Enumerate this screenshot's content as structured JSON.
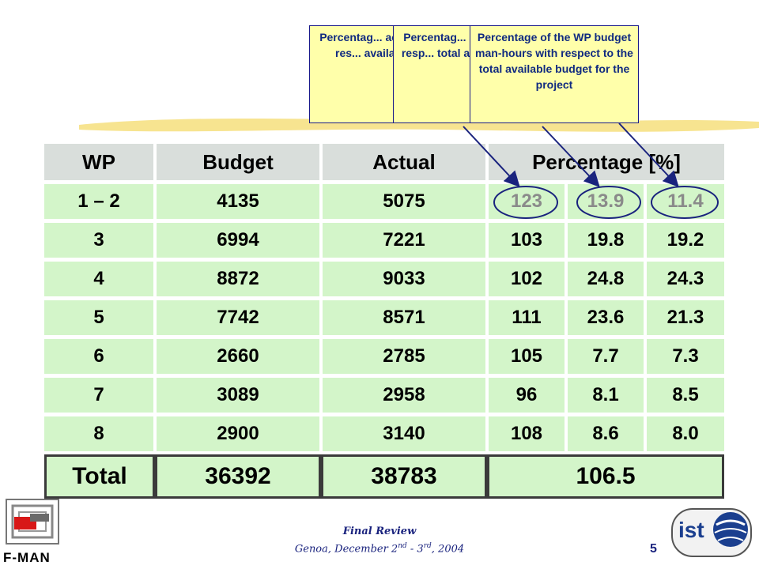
{
  "table": {
    "headers": [
      "WP",
      "Budget",
      "Actual",
      "Percentage [%]"
    ],
    "rows": [
      {
        "wp": "1 – 2",
        "budget": "4135",
        "actual": "5075",
        "p1": "123",
        "p2": "13.9",
        "p3": "11.4"
      },
      {
        "wp": "3",
        "budget": "6994",
        "actual": "7221",
        "p1": "103",
        "p2": "19.8",
        "p3": "19.2"
      },
      {
        "wp": "4",
        "budget": "8872",
        "actual": "9033",
        "p1": "102",
        "p2": "24.8",
        "p3": "24.3"
      },
      {
        "wp": "5",
        "budget": "7742",
        "actual": "8571",
        "p1": "111",
        "p2": "23.6",
        "p3": "21.3"
      },
      {
        "wp": "6",
        "budget": "2660",
        "actual": "2785",
        "p1": "105",
        "p2": "7.7",
        "p3": "7.3"
      },
      {
        "wp": "7",
        "budget": "3089",
        "actual": "2958",
        "p1": "96",
        "p2": "8.1",
        "p3": "8.5"
      },
      {
        "wp": "8",
        "budget": "2900",
        "actual": "3140",
        "p1": "108",
        "p2": "8.6",
        "p3": "8.0"
      }
    ],
    "total": {
      "label": "Total",
      "budget": "36392",
      "actual": "38783",
      "percentage": "106.5"
    }
  },
  "callouts": [
    {
      "text": "Percentag... actual m... with res... available... the..."
    },
    {
      "text": "Percentag... actual m... with resp... total availa... for the..."
    },
    {
      "text": "Percentage of the WP budget man-hours with respect to the total available budget for the project"
    }
  ],
  "footer": {
    "title": "Final Review",
    "subtitle_prefix": "Genoa, December 2",
    "sup1": "nd",
    "mid": " - 3",
    "sup2": "rd",
    "suffix": ", 2004",
    "page_number": "5",
    "left_logo_text": "F-MAN",
    "right_logo_text": "ist"
  },
  "colors": {
    "row_fill": "#d3f5c9",
    "header_fill": "#d9dedb",
    "callout_fill": "#ffffaa",
    "callout_text": "#102a80",
    "arrow": "#1a237e"
  }
}
